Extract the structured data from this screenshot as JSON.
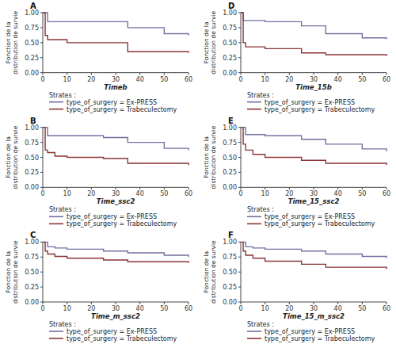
{
  "chart_data": [
    {
      "type": "step",
      "title": "A",
      "xlabel": "Timeb",
      "ylabel": "Fonction de la\ndistribution de survie",
      "legend_title": "Strates : ",
      "legend": "below",
      "grid": false,
      "series": [
        {
          "name": "type_of_surgery = Ex-PRESS",
          "color": "#7070a0",
          "x": [
            0,
            1,
            2,
            5,
            10,
            25,
            35,
            50,
            60
          ],
          "values": [
            1.0,
            1.0,
            0.85,
            0.85,
            0.85,
            0.85,
            0.75,
            0.65,
            0.62
          ]
        },
        {
          "name": "type_of_surgery = Trabeculectomy",
          "color": "#8b3535",
          "x": [
            0,
            1,
            2,
            5,
            10,
            12,
            25,
            35,
            60
          ],
          "values": [
            1.0,
            0.62,
            0.55,
            0.55,
            0.5,
            0.5,
            0.5,
            0.35,
            0.33
          ]
        }
      ],
      "xlim": [
        0,
        60
      ],
      "ylim": [
        0.0,
        1.0
      ],
      "xticks": [
        0,
        10,
        20,
        30,
        40,
        50,
        60
      ],
      "yticks": [
        {
          "value": 0.0,
          "label": "0.00"
        },
        {
          "value": 0.25,
          "label": "0.25"
        },
        {
          "value": 0.5,
          "label": "0.50"
        },
        {
          "value": 0.75,
          "label": "0.75"
        },
        {
          "value": 1.0,
          "label": "1.00"
        }
      ]
    },
    {
      "type": "step",
      "title": "D",
      "xlabel": "Time_15b",
      "ylabel": "Fonction de la\ndistribution de survie",
      "legend_title": "Strates : ",
      "legend": "below",
      "grid": false,
      "series": [
        {
          "name": "type_of_surgery = Ex-PRESS",
          "color": "#7070a0",
          "x": [
            0,
            1,
            5,
            10,
            25,
            35,
            50,
            60
          ],
          "values": [
            1.0,
            0.87,
            0.87,
            0.85,
            0.78,
            0.65,
            0.58,
            0.56
          ]
        },
        {
          "name": "type_of_surgery = Trabeculectomy",
          "color": "#8b3535",
          "x": [
            0,
            1,
            2,
            5,
            10,
            25,
            35,
            60
          ],
          "values": [
            1.0,
            0.5,
            0.43,
            0.43,
            0.4,
            0.33,
            0.3,
            0.28
          ]
        }
      ],
      "xlim": [
        0,
        60
      ],
      "ylim": [
        0.0,
        1.0
      ],
      "xticks": [
        0,
        10,
        20,
        30,
        40,
        50,
        60
      ],
      "yticks": [
        {
          "value": 0.0,
          "label": "0.00"
        },
        {
          "value": 0.25,
          "label": "0.25"
        },
        {
          "value": 0.5,
          "label": "0.50"
        },
        {
          "value": 0.75,
          "label": "0.75"
        },
        {
          "value": 1.0,
          "label": "1.00"
        }
      ]
    },
    {
      "type": "step",
      "title": "B",
      "xlabel": "Time_ssc2",
      "ylabel": "Fonction de la\ndistribution de survie",
      "legend_title": "Strates : ",
      "legend": "below",
      "grid": false,
      "series": [
        {
          "name": "type_of_surgery = Ex-PRESS",
          "color": "#7070a0",
          "x": [
            0,
            2,
            5,
            10,
            25,
            35,
            50,
            60
          ],
          "values": [
            1.0,
            0.86,
            0.86,
            0.86,
            0.83,
            0.75,
            0.65,
            0.62
          ]
        },
        {
          "name": "type_of_surgery = Trabeculectomy",
          "color": "#8b3535",
          "x": [
            0,
            1,
            2,
            5,
            10,
            25,
            35,
            60
          ],
          "values": [
            1.0,
            0.62,
            0.58,
            0.52,
            0.5,
            0.48,
            0.4,
            0.37
          ]
        }
      ],
      "xlim": [
        0,
        60
      ],
      "ylim": [
        0.0,
        1.0
      ],
      "xticks": [
        0,
        10,
        20,
        30,
        40,
        50,
        60
      ],
      "yticks": [
        {
          "value": 0.0,
          "label": "0.00"
        },
        {
          "value": 0.25,
          "label": "0.25"
        },
        {
          "value": 0.5,
          "label": "0.50"
        },
        {
          "value": 0.75,
          "label": "0.75"
        },
        {
          "value": 1.0,
          "label": "1.00"
        }
      ]
    },
    {
      "type": "step",
      "title": "E",
      "xlabel": "Time_15_ssc2",
      "ylabel": "Fonction de la\ndistribution de survie",
      "legend_title": "Strates : ",
      "legend": "below",
      "grid": false,
      "series": [
        {
          "name": "type_of_surgery = Ex-PRESS",
          "color": "#7070a0",
          "x": [
            0,
            2,
            5,
            10,
            25,
            35,
            50,
            60
          ],
          "values": [
            1.0,
            0.88,
            0.88,
            0.86,
            0.8,
            0.72,
            0.64,
            0.6
          ]
        },
        {
          "name": "type_of_surgery = Trabeculectomy",
          "color": "#8b3535",
          "x": [
            0,
            1,
            2,
            5,
            10,
            25,
            35,
            60
          ],
          "values": [
            1.0,
            0.72,
            0.62,
            0.55,
            0.5,
            0.45,
            0.4,
            0.37
          ]
        }
      ],
      "xlim": [
        0,
        60
      ],
      "ylim": [
        0.0,
        1.0
      ],
      "xticks": [
        0,
        10,
        20,
        30,
        40,
        50,
        60
      ],
      "yticks": [
        {
          "value": 0.0,
          "label": "0.00"
        },
        {
          "value": 0.25,
          "label": "0.25"
        },
        {
          "value": 0.5,
          "label": "0.50"
        },
        {
          "value": 0.75,
          "label": "0.75"
        },
        {
          "value": 1.0,
          "label": "1.00"
        }
      ]
    },
    {
      "type": "step",
      "title": "C",
      "xlabel": "Time_m_ssc2",
      "ylabel": "Fonction de la\ndistribution de survie",
      "legend_title": "Strates : ",
      "legend": "below",
      "grid": false,
      "series": [
        {
          "name": "type_of_surgery = Ex-PRESS",
          "color": "#7070a0",
          "x": [
            0,
            2,
            5,
            10,
            25,
            35,
            50,
            60
          ],
          "values": [
            1.0,
            0.92,
            0.9,
            0.88,
            0.85,
            0.82,
            0.78,
            0.75
          ]
        },
        {
          "name": "type_of_surgery = Trabeculectomy",
          "color": "#8b3535",
          "x": [
            0,
            1,
            2,
            5,
            10,
            25,
            35,
            60
          ],
          "values": [
            1.0,
            0.85,
            0.8,
            0.76,
            0.73,
            0.7,
            0.67,
            0.65
          ]
        }
      ],
      "xlim": [
        0,
        60
      ],
      "ylim": [
        0.0,
        1.0
      ],
      "xticks": [
        0,
        10,
        20,
        30,
        40,
        50,
        60
      ],
      "yticks": [
        {
          "value": 0.0,
          "label": "0.00"
        },
        {
          "value": 0.25,
          "label": "0.25"
        },
        {
          "value": 0.5,
          "label": "0.50"
        },
        {
          "value": 0.75,
          "label": "0.75"
        },
        {
          "value": 1.0,
          "label": "1.00"
        }
      ]
    },
    {
      "type": "step",
      "title": "F",
      "xlabel": "Time_15_m_ssc2",
      "ylabel": "Fonction de la\ndistribution de survie",
      "legend_title": "Strates : ",
      "legend": "below",
      "grid": false,
      "series": [
        {
          "name": "type_of_surgery = Ex-PRESS",
          "color": "#7070a0",
          "x": [
            0,
            2,
            5,
            10,
            25,
            35,
            50,
            60
          ],
          "values": [
            1.0,
            0.92,
            0.9,
            0.88,
            0.85,
            0.8,
            0.76,
            0.73
          ]
        },
        {
          "name": "type_of_surgery = Trabeculectomy",
          "color": "#8b3535",
          "x": [
            0,
            1,
            2,
            5,
            10,
            25,
            35,
            60
          ],
          "values": [
            1.0,
            0.85,
            0.78,
            0.73,
            0.68,
            0.63,
            0.58,
            0.55
          ]
        }
      ],
      "xlim": [
        0,
        60
      ],
      "ylim": [
        0.0,
        1.0
      ],
      "xticks": [
        0,
        10,
        20,
        30,
        40,
        50,
        60
      ],
      "yticks": [
        {
          "value": 0.0,
          "label": "0.00"
        },
        {
          "value": 0.25,
          "label": "0.25"
        },
        {
          "value": 0.5,
          "label": "0.50"
        },
        {
          "value": 0.75,
          "label": "0.75"
        },
        {
          "value": 1.0,
          "label": "1.00"
        }
      ]
    }
  ]
}
